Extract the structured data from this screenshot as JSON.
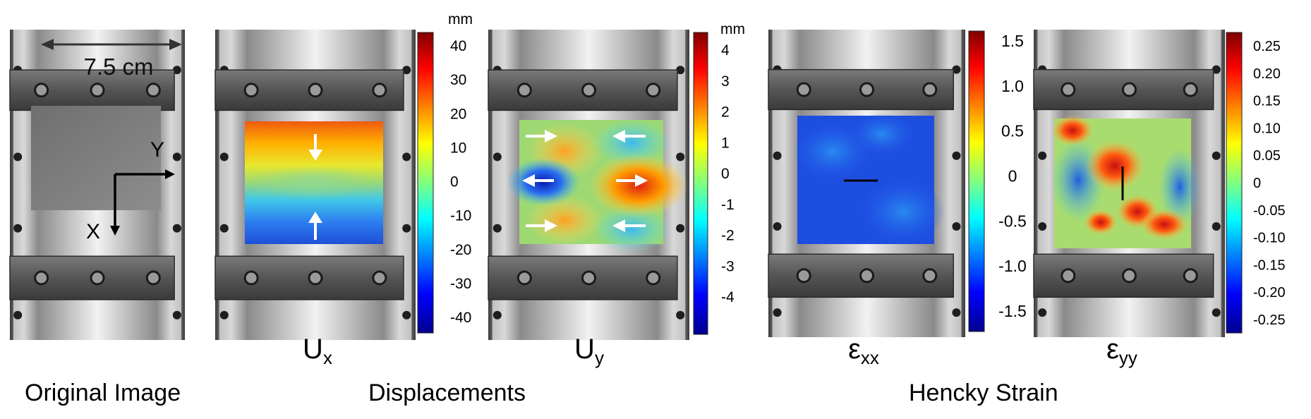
{
  "original": {
    "scale_label": "7.5 cm",
    "axis_x_label": "X",
    "axis_y_label": "Y"
  },
  "panels": [
    {
      "id": "ux",
      "base": "U",
      "sub": "x",
      "style": "ux"
    },
    {
      "id": "uy",
      "base": "U",
      "sub": "y",
      "style": "uy"
    },
    {
      "id": "exx",
      "base": "ε",
      "sub": "xx",
      "style": "exx"
    },
    {
      "id": "eyy",
      "base": "ε",
      "sub": "yy",
      "style": "eyy"
    }
  ],
  "colorbars": [
    {
      "id": "ux",
      "unit": "mm",
      "ticks": [
        "40",
        "30",
        "20",
        "10",
        "0",
        "-10",
        "-20",
        "-30",
        "-40"
      ]
    },
    {
      "id": "uy",
      "unit": "mm",
      "ticks": [
        "4",
        "3",
        "2",
        "1",
        "0",
        "-1",
        "-2",
        "-3",
        "-4"
      ]
    },
    {
      "id": "exx",
      "unit": "",
      "ticks": [
        "1.5",
        "1.0",
        "0.5",
        "0",
        "-0.5",
        "-1.0",
        "-1.5"
      ]
    },
    {
      "id": "eyy",
      "unit": "",
      "ticks": [
        "0.25",
        "0.20",
        "0.15",
        "0.10",
        "0.05",
        "0",
        "-0.05",
        "-0.10",
        "-0.15",
        "-0.20",
        "-0.25"
      ]
    }
  ],
  "bottom_labels": {
    "original": "Original Image",
    "displacements": "Displacements",
    "strain": "Hencky  Strain"
  },
  "colors": {
    "jet": [
      "#00008f",
      "#0000ff",
      "#0080ff",
      "#00ffff",
      "#80ff80",
      "#ffff00",
      "#ff8000",
      "#ff0000",
      "#800000"
    ]
  }
}
